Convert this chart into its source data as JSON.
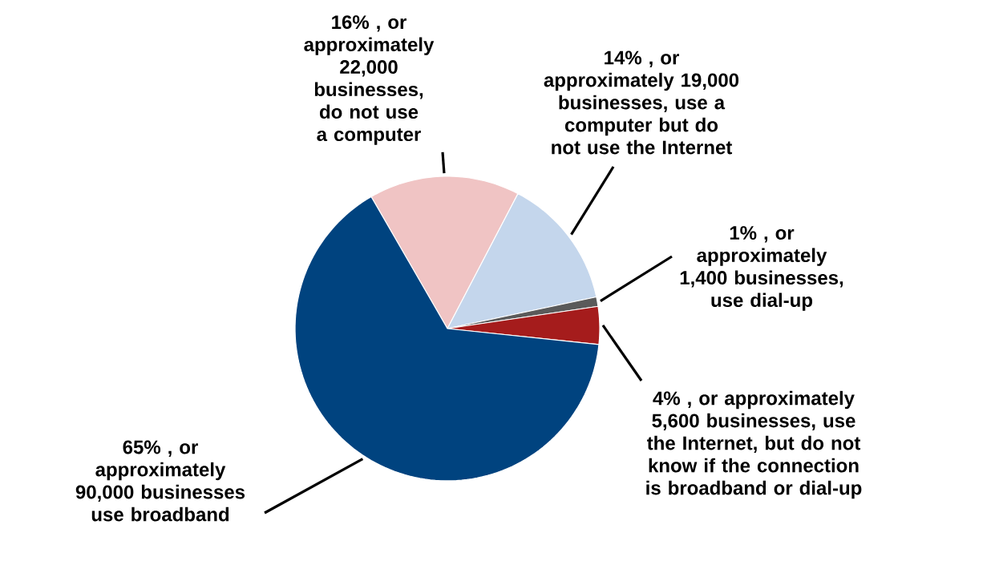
{
  "chart_data": {
    "type": "pie",
    "categories": [
      "16% , or approximately 22,000 businesses, do not use a computer",
      "14% , or approximately 19,000 businesses, use a computer but do not use the Internet",
      "1% , or approximately 1,400 businesses, use dial-up",
      "4% , or approximately 5,600 businesses, use the Internet, but do not know if the connection is broadband or dial-up",
      "65% , or approximately 90,000 businesses use broadband"
    ],
    "values": [
      16,
      14,
      1,
      4,
      65
    ],
    "colors": [
      "#f0c4c4",
      "#c4d6ec",
      "#5a5a5a",
      "#a51c1c",
      "#00437f"
    ]
  }
}
